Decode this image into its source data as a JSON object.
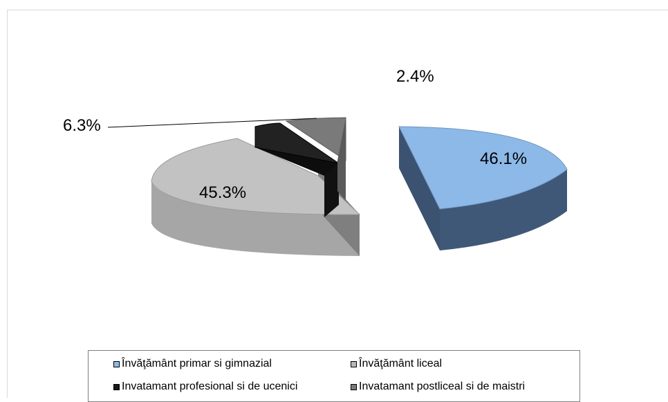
{
  "chart_data": {
    "type": "pie",
    "title": "",
    "slices": [
      {
        "label": "Învăţământ primar si  gimnazial",
        "value": 46.1,
        "data_label": "46.1%",
        "color": "#8db9e8",
        "side_color": "#3b5270"
      },
      {
        "label": "Învăţământ liceal",
        "value": 45.3,
        "data_label": "45.3%",
        "color": "#b8b8b8",
        "side_color": "#8a8a8a"
      },
      {
        "label": "Invatamant profesional si de ucenici",
        "value": 6.3,
        "data_label": "6.3%",
        "color": "#1a1a1a",
        "side_color": "#0a0a0a"
      },
      {
        "label": "Invatamant postliceal si de maistri",
        "value": 2.4,
        "data_label": "2.4%",
        "color": "#7a7a7a",
        "side_color": "#5a5a5a"
      }
    ],
    "legend_position": "bottom",
    "style": "3d-exploded"
  }
}
